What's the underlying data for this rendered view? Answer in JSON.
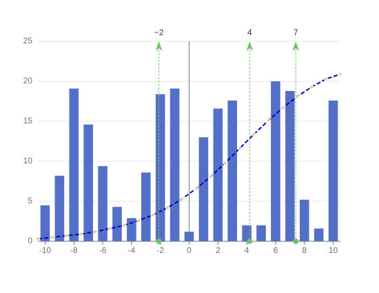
{
  "chart_data": {
    "type": "bar",
    "x": [
      -10,
      -9,
      -8,
      -7,
      -6,
      -5,
      -4,
      -3,
      -2,
      -1,
      0,
      1,
      2,
      3,
      4,
      5,
      6,
      7,
      8,
      9,
      10
    ],
    "values": [
      4.5,
      8.2,
      19.1,
      14.6,
      9.4,
      4.3,
      2.9,
      8.6,
      18.4,
      19.1,
      1.2,
      13,
      16.6,
      17.6,
      2.0,
      2.0,
      20,
      18.8,
      5.2,
      1.6,
      17.6
    ],
    "color": "#5470c6",
    "line": {
      "type": "line",
      "color": "#0000cc",
      "marker_color": "#f5c97a",
      "x": [
        -10.5,
        -9.5,
        -8.5,
        -7.5,
        -6.5,
        -5.5,
        -4.5,
        -3.5,
        -2.5,
        -1.5,
        -0.5,
        0.5,
        1.5,
        2.5,
        3.5,
        4.5,
        5.5,
        6.5,
        7.5,
        8.5,
        9.5,
        10.5
      ],
      "values": [
        0.3,
        0.5,
        0.7,
        0.9,
        1.2,
        1.6,
        2.0,
        2.6,
        3.3,
        4.2,
        5.3,
        6.6,
        8.1,
        9.8,
        11.6,
        13.4,
        15.1,
        16.7,
        18.1,
        19.3,
        20.3,
        20.9
      ]
    },
    "marklines": [
      {
        "value": -2.1,
        "label": "−2"
      },
      {
        "value": 4.2,
        "label": "4"
      },
      {
        "value": 7.4,
        "label": "7"
      }
    ],
    "markline_color": "#73c06b",
    "xlim": [
      -10.5,
      10.5
    ],
    "xticks": [
      -10,
      -8,
      -6,
      -4,
      -2,
      0,
      2,
      4,
      6,
      8,
      10
    ],
    "ylim": [
      0,
      25
    ],
    "yticks": [
      0,
      5,
      10,
      15,
      20,
      25
    ],
    "grid": true
  }
}
